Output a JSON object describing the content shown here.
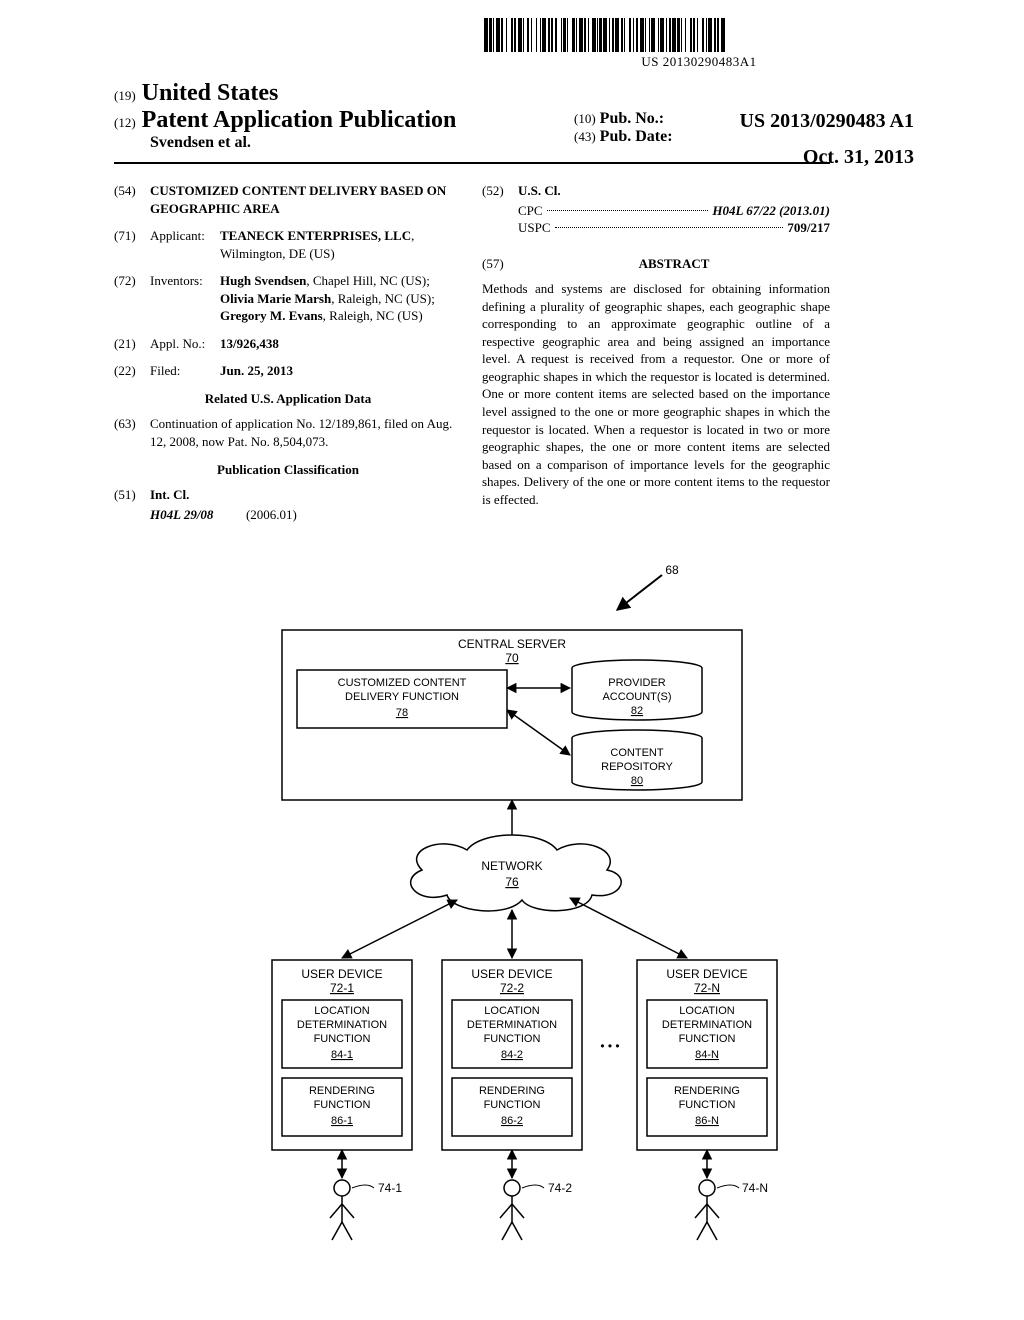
{
  "barcode_text": "US 20130290483A1",
  "header": {
    "country_num": "(19)",
    "country": "United States",
    "kind_num": "(12)",
    "kind": "Patent Application Publication",
    "authors": "Svendsen et al.",
    "pub_no_num": "(10)",
    "pub_no_label": "Pub. No.:",
    "pub_no_value": "US 2013/0290483 A1",
    "pub_date_num": "(43)",
    "pub_date_label": "Pub. Date:",
    "pub_date_value": "Oct. 31, 2013"
  },
  "left_col": {
    "title_num": "(54)",
    "title": "CUSTOMIZED CONTENT DELIVERY BASED ON GEOGRAPHIC AREA",
    "applicant_num": "(71)",
    "applicant_label": "Applicant:",
    "applicant_body": "TEANECK ENTERPRISES, LLC, Wilmington, DE (US)",
    "inventors_num": "(72)",
    "inventors_label": "Inventors:",
    "inventors_body": "Hugh Svendsen, Chapel Hill, NC (US); Olivia Marie Marsh, Raleigh, NC (US); Gregory M. Evans, Raleigh, NC (US)",
    "appl_num": "(21)",
    "appl_label": "Appl. No.:",
    "appl_value": "13/926,438",
    "filed_num": "(22)",
    "filed_label": "Filed:",
    "filed_value": "Jun. 25, 2013",
    "related_heading": "Related U.S. Application Data",
    "continuation_num": "(63)",
    "continuation_body": "Continuation of application No. 12/189,861, filed on Aug. 12, 2008, now Pat. No. 8,504,073.",
    "pub_class_heading": "Publication Classification",
    "intcl_num": "(51)",
    "intcl_label": "Int. Cl.",
    "intcl_code": "H04L 29/08",
    "intcl_year": "(2006.01)"
  },
  "right_col": {
    "uscl_num": "(52)",
    "uscl_label": "U.S. Cl.",
    "cpc_label": "CPC",
    "cpc_value": "H04L 67/22 (2013.01)",
    "uspc_label": "USPC",
    "uspc_value": "709/217",
    "abstract_num": "(57)",
    "abstract_label": "ABSTRACT",
    "abstract_body": "Methods and systems are disclosed for obtaining information defining a plurality of geographic shapes, each geographic shape corresponding to an approximate geographic outline of a respective geographic area and being assigned an importance level. A request is received from a requestor. One or more of geographic shapes in which the requestor is located is determined. One or more content items are selected based on the importance level assigned to the one or more geographic shapes in which the requestor is located. When a requestor is located in two or more geographic shapes, the one or more content items are selected based on a comparison of importance levels for the geographic shapes. Delivery of the one or more content items to the requestor is effected."
  },
  "diagram": {
    "ref_68": "68",
    "central_server": "CENTRAL SERVER",
    "central_server_ref": "70",
    "ccdf_line1": "CUSTOMIZED CONTENT",
    "ccdf_line2": "DELIVERY FUNCTION",
    "ccdf_ref": "78",
    "provider_line1": "PROVIDER",
    "provider_line2": "ACCOUNT(S)",
    "provider_ref": "82",
    "content_line1": "CONTENT",
    "content_line2": "REPOSITORY",
    "content_ref": "80",
    "network": "NETWORK",
    "network_ref": "76",
    "user_device": "USER DEVICE",
    "ud_ref_1": "72-1",
    "ud_ref_2": "72-2",
    "ud_ref_n": "72-N",
    "ldf_line1": "LOCATION",
    "ldf_line2": "DETERMINATION",
    "ldf_line3": "FUNCTION",
    "ldf_ref_1": "84-1",
    "ldf_ref_2": "84-2",
    "ldf_ref_n": "84-N",
    "rf_line1": "RENDERING",
    "rf_line2": "FUNCTION",
    "rf_ref_1": "86-1",
    "rf_ref_2": "86-2",
    "rf_ref_n": "86-N",
    "user_ref_1": "74-1",
    "user_ref_2": "74-2",
    "user_ref_n": "74-N",
    "ellipsis": "• • •",
    "stroke": "#000000",
    "fill": "#ffffff",
    "font_family": "Arial, Helvetica, sans-serif"
  }
}
